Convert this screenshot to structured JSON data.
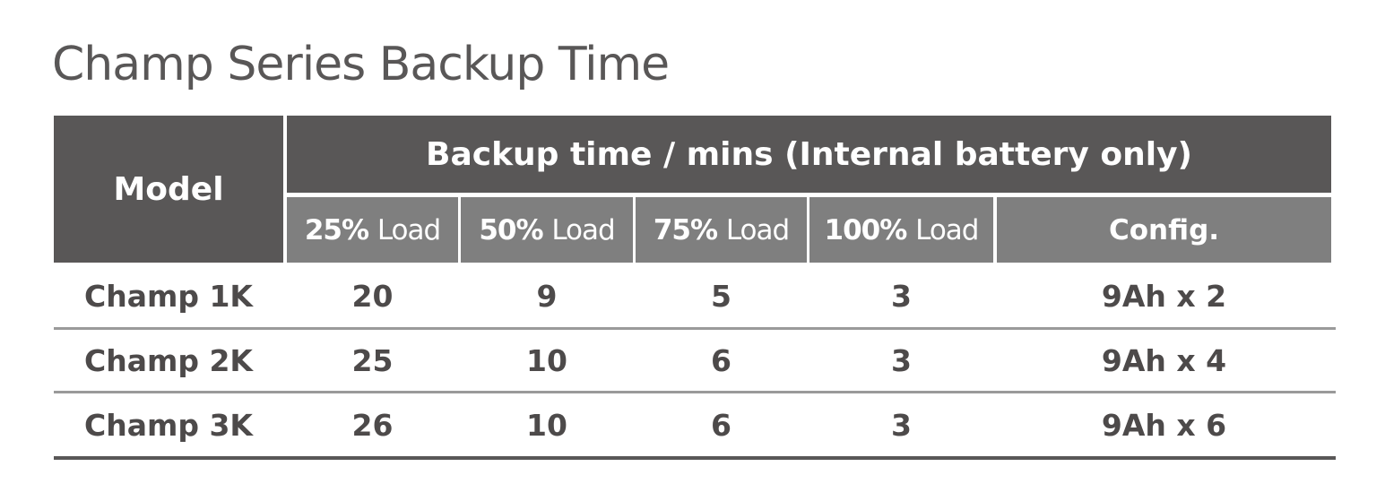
{
  "title": "Champ Series Backup Time",
  "header": {
    "model": "Model",
    "group": "Backup time / mins (Internal battery only)",
    "sub": [
      {
        "pct": "25%",
        "word": "Load"
      },
      {
        "pct": "50%",
        "word": "Load"
      },
      {
        "pct": "75%",
        "word": "Load"
      },
      {
        "pct": "100%",
        "word": "Load"
      }
    ],
    "config": "Config."
  },
  "rows": [
    {
      "model": "Champ 1K",
      "v": [
        "20",
        "9",
        "5",
        "3"
      ],
      "config": "9Ah x 2"
    },
    {
      "model": "Champ 2K",
      "v": [
        "25",
        "10",
        "6",
        "3"
      ],
      "config": "9Ah x 4"
    },
    {
      "model": "Champ 3K",
      "v": [
        "26",
        "10",
        "6",
        "3"
      ],
      "config": "9Ah x 6"
    }
  ],
  "colors": {
    "header_dark": "#595757",
    "header_light": "#7f7f7f",
    "text": "#4d4a4a",
    "row_separator": "#9a9a9a"
  }
}
